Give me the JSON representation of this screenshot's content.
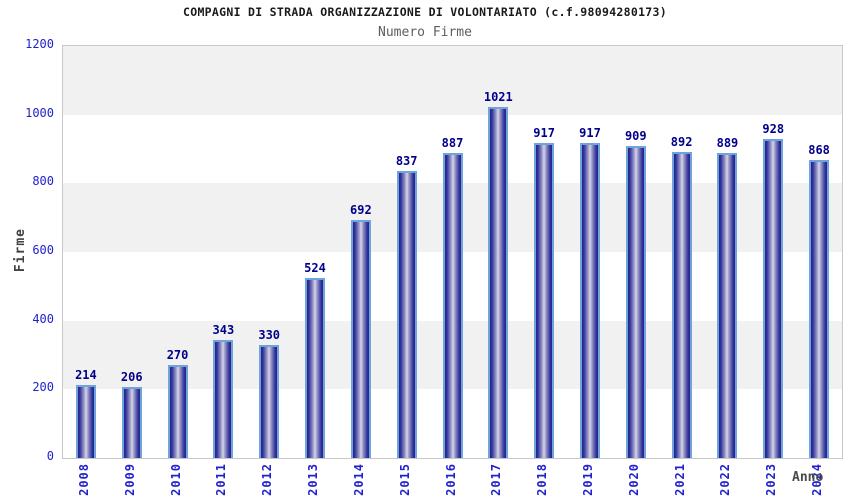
{
  "chart_data": {
    "type": "bar",
    "title": "COMPAGNI DI STRADA ORGANIZZAZIONE DI VOLONTARIATO (c.f.98094280173)",
    "subtitle": "Numero Firme",
    "xlabel": "Anno",
    "ylabel": "Firme",
    "categories": [
      "2008",
      "2009",
      "2010",
      "2011",
      "2012",
      "2013",
      "2014",
      "2015",
      "2016",
      "2017",
      "2018",
      "2019",
      "2020",
      "2021",
      "2022",
      "2023",
      "2024"
    ],
    "values": [
      214,
      206,
      270,
      343,
      330,
      524,
      692,
      837,
      887,
      1021,
      917,
      917,
      909,
      892,
      889,
      928,
      868
    ],
    "ylim": [
      0,
      1200
    ],
    "yticks": [
      0,
      200,
      400,
      600,
      800,
      1000,
      1200
    ],
    "grid": "alternating-horizontal-bands",
    "legend": "none",
    "colors": {
      "bar_border": "#6fa3dc",
      "bar_edge_dark": "#23238c",
      "bar_mid": "#33339b",
      "bar_center_light": "#d5d5e8",
      "axis_tick_label": "#2222cc",
      "value_label": "#00008b",
      "band_gray": "#f2f1f1",
      "band_white": "#ffffff",
      "title_color": "#1a1a1a",
      "subtitle_color": "#5f5f5f",
      "axis_title_color": "#4a4a4a",
      "plot_border": "#c8c8c8"
    }
  }
}
